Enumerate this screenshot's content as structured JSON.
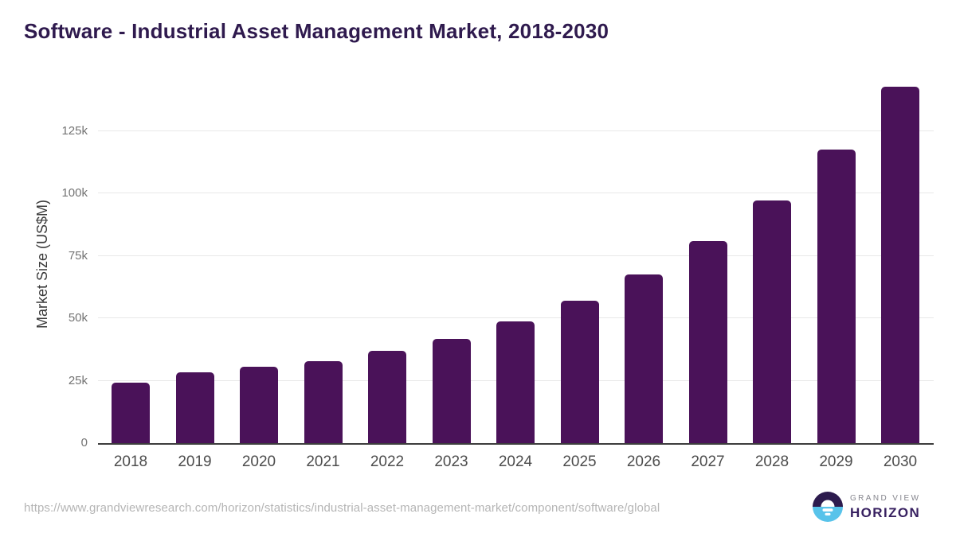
{
  "title": "Software - Industrial Asset Management Market, 2018-2030",
  "chart_data": {
    "type": "bar",
    "title": "Software - Industrial Asset Management Market, 2018-2030",
    "xlabel": "",
    "ylabel": "Market Size (US$M)",
    "categories": [
      "2018",
      "2019",
      "2020",
      "2021",
      "2022",
      "2023",
      "2024",
      "2025",
      "2026",
      "2027",
      "2028",
      "2029",
      "2030"
    ],
    "values": [
      24300,
      28300,
      30500,
      33000,
      37100,
      41700,
      48900,
      57200,
      67500,
      80900,
      97200,
      117600,
      142800
    ],
    "yticks": {
      "values": [
        0,
        25000,
        50000,
        75000,
        100000,
        125000
      ],
      "labels": [
        "0",
        "25k",
        "50k",
        "75k",
        "100k",
        "125k"
      ]
    },
    "ylim": [
      0,
      146000
    ],
    "grid": true,
    "legend": "none",
    "bar_color": "#4a1259"
  },
  "footer": {
    "source_url": "https://www.grandviewresearch.com/horizon/statistics/industrial-asset-management-market/component/software/global",
    "logo": {
      "top": "GRAND VIEW",
      "bottom": "HORIZON"
    }
  },
  "colors": {
    "title": "#2f1a4e",
    "bar": "#4a1259",
    "gridline": "#e8e8e8",
    "axis_line": "#3d3d3d",
    "y_tick": "#737373",
    "x_tick": "#4c4c4c",
    "url_text": "#b5b5b5",
    "logo_dark": "#2d1b4e",
    "logo_blue": "#58c3ea",
    "logo_gray": "#85858d",
    "logo_purple": "#372060"
  }
}
